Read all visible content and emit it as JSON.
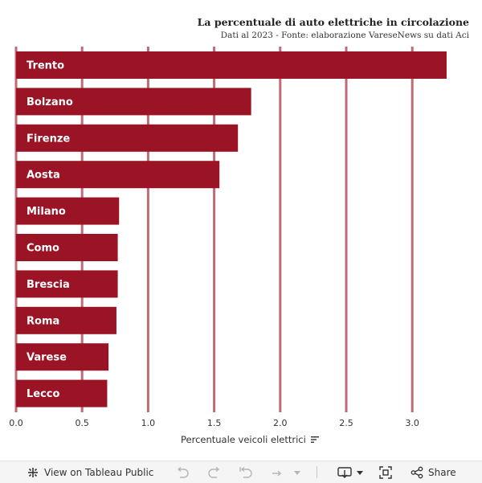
{
  "chart_data": {
    "type": "bar",
    "orientation": "horizontal",
    "title": "La percentuale di auto elettriche in circolazione",
    "subtitle": "Dati al 2023 - Fonte: elaborazione VareseNews su dati Aci",
    "categories": [
      "Trento",
      "Bolzano",
      "Firenze",
      "Aosta",
      "Milano",
      "Como",
      "Brescia",
      "Roma",
      "Varese",
      "Lecco"
    ],
    "values": [
      3.26,
      1.78,
      1.68,
      1.54,
      0.78,
      0.77,
      0.77,
      0.76,
      0.7,
      0.69
    ],
    "xlabel": "Percentuale veicoli elettrici",
    "xlim": [
      0,
      3.5
    ],
    "xticks": [
      "0.0",
      "0.5",
      "1.0",
      "1.5",
      "2.0",
      "2.5",
      "3.0"
    ],
    "grid": true,
    "bar_color": "#9b1426",
    "grid_color": "#c06a76"
  },
  "toolbar": {
    "view_label": "View on Tableau Public",
    "share_label": "Share",
    "icons": [
      "tableau-logo-icon",
      "undo-icon",
      "redo-icon",
      "revert-icon",
      "refresh-icon",
      "dropdown-icon",
      "download-icon",
      "fullscreen-icon",
      "share-icon"
    ]
  }
}
